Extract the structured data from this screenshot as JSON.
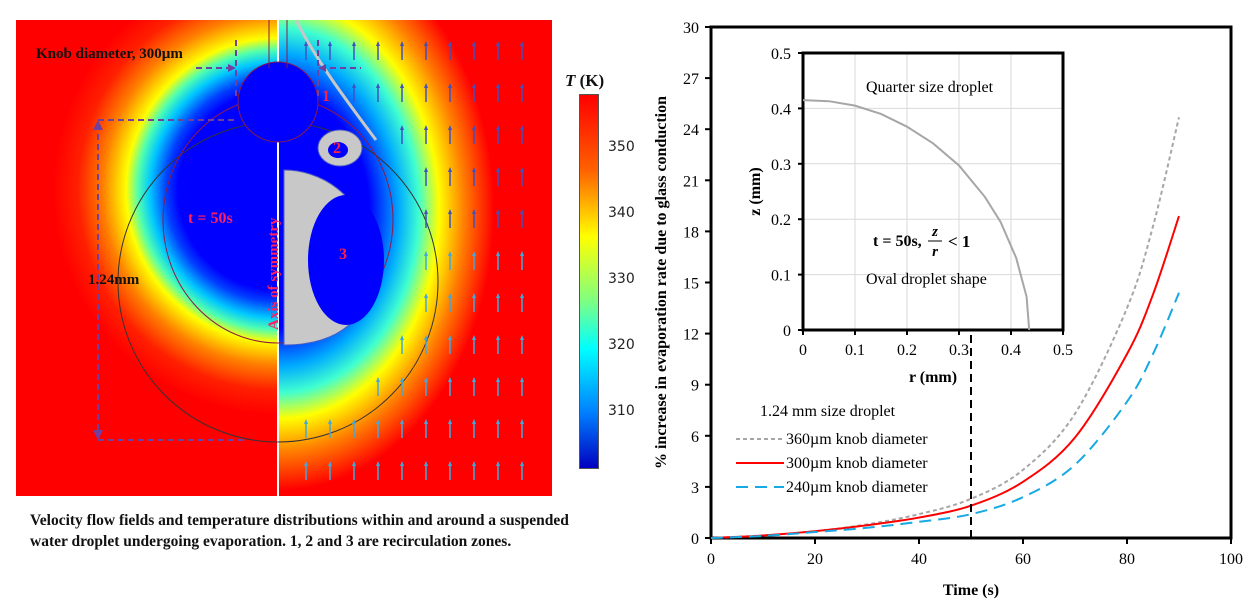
{
  "field_figure": {
    "knob_label": "Knob diameter, 300µm",
    "time_label": "t = 50s",
    "axis_label": "Axis of symmetry",
    "size_label": "1.24mm",
    "zones": [
      "1",
      "2",
      "3"
    ],
    "colorbar": {
      "title": "T (K)",
      "ticks": [
        "350",
        "340",
        "330",
        "320",
        "310"
      ],
      "colors": {
        "hot": "#ff0000",
        "cold": "#0000ff"
      }
    },
    "caption": "Velocity flow fields and temperature distributions within and around a suspended water droplet undergoing evaporation. 1, 2 and 3 are recirculation zones."
  },
  "chart_data": [
    {
      "type": "line",
      "title": "",
      "xlabel": "Time (s)",
      "ylabel": "% increase in evaporation rate due to glass conduction",
      "xlim": [
        0,
        100
      ],
      "ylim": [
        0,
        30
      ],
      "xticks": [
        0,
        20,
        40,
        60,
        80,
        100
      ],
      "yticks": [
        0,
        3,
        6,
        9,
        12,
        15,
        18,
        21,
        24,
        27,
        30
      ],
      "grid": false,
      "legend_title": "1.24 mm size droplet",
      "legend_position": "bottom-left",
      "x": [
        0,
        10,
        20,
        30,
        40,
        50,
        60,
        70,
        80,
        85,
        90
      ],
      "series": [
        {
          "name": "360µm knob diameter",
          "color": "#a6a6a6",
          "style": "dotted",
          "values": [
            0,
            0.15,
            0.4,
            0.8,
            1.4,
            2.3,
            4.0,
            7.3,
            13.5,
            18.3,
            24.7
          ]
        },
        {
          "name": "300µm knob diameter",
          "color": "#ff0000",
          "style": "solid",
          "values": [
            0,
            0.15,
            0.4,
            0.75,
            1.2,
            1.9,
            3.3,
            5.9,
            10.8,
            14.3,
            18.9
          ]
        },
        {
          "name": "240µm knob diameter",
          "color": "#17a9e3",
          "style": "dashed",
          "values": [
            0,
            0.12,
            0.35,
            0.6,
            0.95,
            1.4,
            2.4,
            4.3,
            8.0,
            10.8,
            14.4
          ]
        }
      ],
      "annotation": {
        "type": "vertical-dashed-arrow",
        "x": 50,
        "color": "#000000"
      }
    },
    {
      "type": "line",
      "title": "Quarter size droplet",
      "xlabel": "r (mm)",
      "ylabel": "z (mm)",
      "xlim": [
        0,
        0.5
      ],
      "ylim": [
        0,
        0.5
      ],
      "xticks": [
        0,
        0.1,
        0.2,
        0.3,
        0.4,
        0.5
      ],
      "yticks": [
        0,
        0.1,
        0.2,
        0.3,
        0.4,
        0.5
      ],
      "grid": true,
      "series": [
        {
          "name": "droplet profile",
          "color": "#a6a6a6",
          "style": "solid",
          "r": [
            0,
            0.05,
            0.1,
            0.15,
            0.2,
            0.25,
            0.3,
            0.35,
            0.38,
            0.41,
            0.43,
            0.435
          ],
          "z": [
            0.415,
            0.413,
            0.405,
            0.39,
            0.367,
            0.337,
            0.297,
            0.24,
            0.195,
            0.13,
            0.06,
            0.0
          ]
        }
      ],
      "annotations": [
        "t = 50s, z/r < 1",
        "Oval droplet shape"
      ]
    }
  ]
}
